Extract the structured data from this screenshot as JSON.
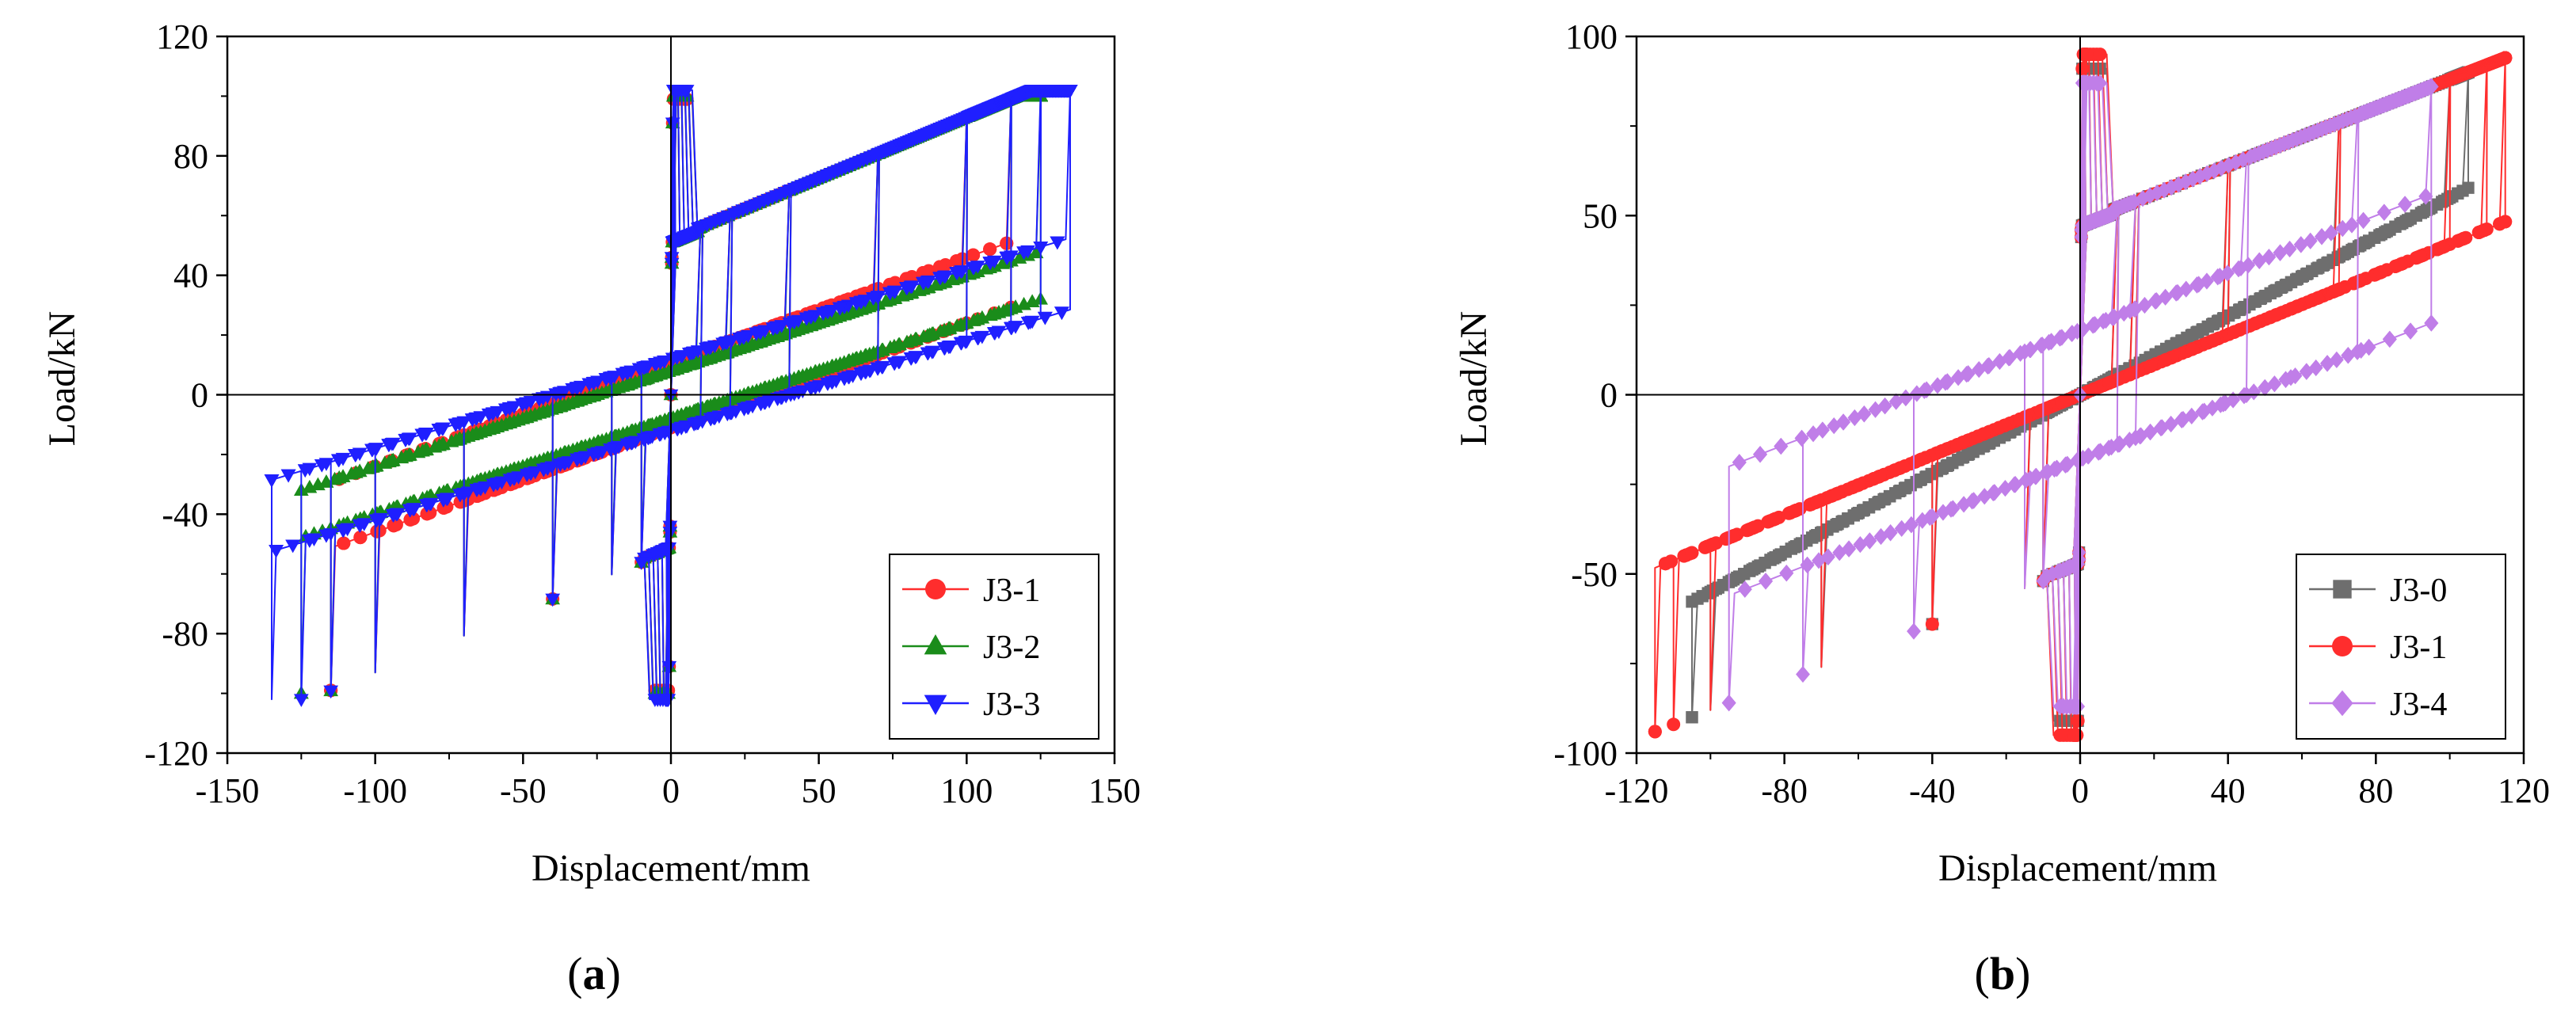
{
  "chart_data": [
    {
      "type": "line",
      "panel_label": "(a)",
      "panel_label_letter": "a",
      "xlabel": "Displacement/mm",
      "ylabel": "Load/kN",
      "xlim": [
        -150,
        150
      ],
      "ylim": [
        -120,
        120
      ],
      "xticks": [
        -150,
        -100,
        -50,
        0,
        50,
        100,
        150
      ],
      "yticks": [
        -120,
        -80,
        -40,
        0,
        40,
        80,
        120
      ],
      "legend_position": "bottom-right",
      "hysteresis": {
        "k_elastic": 150,
        "yield_load": 52,
        "k_post_yield": 0.41,
        "elastic_envelope_offset": 1,
        "elastic_amplitudes": [
          1.5,
          3,
          4.5,
          6,
          7.5,
          9
        ]
      },
      "series": [
        {
          "name": "J3-1",
          "color": "#ff2d2d",
          "marker": "circle",
          "amplitudes": [
            10,
            20,
            40,
            70,
            100,
            115
          ],
          "yield_load": 52,
          "k_post_yield": 0.41,
          "residual_load": 11,
          "k_unloading": 0.35,
          "peak_load_pos": 99,
          "peak_load_neg": -99,
          "cycles_at_max": 3
        },
        {
          "name": "J3-2",
          "color": "#1a8c1a",
          "marker": "triangle-up",
          "amplitudes": [
            10,
            20,
            40,
            70,
            100,
            115,
            125
          ],
          "yield_load": 52,
          "k_post_yield": 0.41,
          "residual_load": 8,
          "k_unloading": 0.32,
          "peak_load_pos": 100,
          "peak_load_neg": -100,
          "cycles_at_max": 3
        },
        {
          "name": "J3-3",
          "color": "#1f1fff",
          "marker": "triangle-down",
          "amplitudes": [
            10,
            20,
            40,
            70,
            100,
            115,
            125,
            135
          ],
          "yield_load": 52,
          "k_post_yield": 0.41,
          "residual_load": 12,
          "k_unloading": 0.3,
          "peak_load_pos": 102,
          "peak_load_neg": -102,
          "cycles_at_max": 3
        }
      ]
    },
    {
      "type": "line",
      "panel_label": "(b)",
      "panel_label_letter": "b",
      "xlabel": "Displacement/mm",
      "ylabel": "Load/kN",
      "xlim": [
        -120,
        120
      ],
      "ylim": [
        -100,
        100
      ],
      "xticks": [
        -120,
        -80,
        -40,
        0,
        40,
        80,
        120
      ],
      "yticks": [
        -100,
        -50,
        0,
        50,
        100
      ],
      "legend_position": "bottom-right",
      "hysteresis": {
        "k_elastic": 150,
        "yield_load": 48,
        "k_post_yield": 0.4,
        "elastic_envelope_offset": 1,
        "elastic_amplitudes": [
          1.5,
          3,
          4.5,
          6,
          7.5,
          9
        ]
      },
      "series": [
        {
          "name": "J3-0",
          "color": "#6e6e6e",
          "marker": "square",
          "amplitudes": [
            10,
            15,
            40,
            70,
            100,
            105
          ],
          "yield_load": 48,
          "k_post_yield": 0.4,
          "residual_load": 0,
          "k_unloading": 0.55,
          "peak_load_pos": 91,
          "peak_load_neg": -91,
          "cycles_at_max": 3
        },
        {
          "name": "J3-1",
          "color": "#ff2d2d",
          "marker": "circle",
          "amplitudes": [
            10,
            15,
            40,
            70,
            100,
            110,
            115
          ],
          "yield_load": 48,
          "k_post_yield": 0.4,
          "residual_load": 0,
          "k_unloading": 0.42,
          "peak_load_pos": 95,
          "peak_load_neg": -95,
          "cycles_at_max": 3
        },
        {
          "name": "J3-4",
          "color": "#c07ee8",
          "marker": "diamond",
          "amplitudes": [
            10,
            15,
            45,
            75,
            95
          ],
          "yield_load": 48,
          "k_post_yield": 0.4,
          "residual_load": 18,
          "k_unloading": 0.4,
          "peak_load_pos": 87,
          "peak_load_neg": -87,
          "cycles_at_max": 3
        }
      ]
    }
  ]
}
